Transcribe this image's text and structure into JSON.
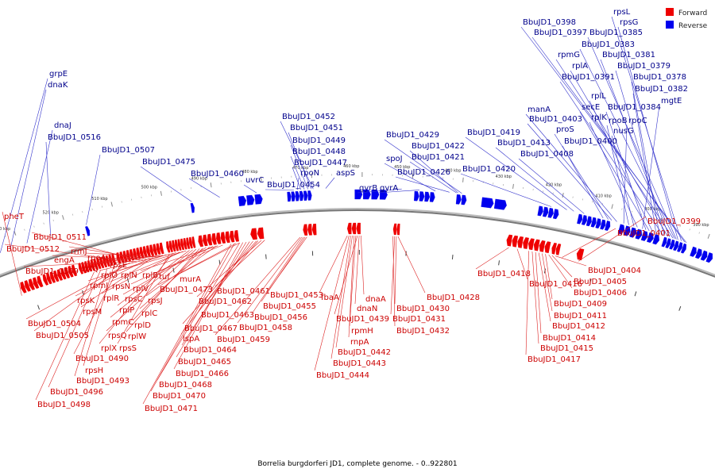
{
  "caption": "Borrelia burgdorferi JD1, complete genome. - 0..922801",
  "legend": [
    {
      "label": "Forward",
      "color": "#ee0000"
    },
    {
      "label": "Reverse",
      "color": "#0000ee"
    }
  ],
  "colors": {
    "forward": "#ee0000",
    "reverse": "#0000ee",
    "forward_label": "#cc0000",
    "reverse_label": "#00008b",
    "backbone": "#777777"
  },
  "ticks": [
    "390 kbp",
    "400 kbp",
    "410 kbp",
    "420 kbp",
    "430 kbp",
    "440 kbp",
    "450 kbp",
    "460 kbp",
    "470 kbp",
    "480 kbp",
    "490 kbp",
    "500 kbp",
    "510 kbp",
    "520 kbp",
    "530 kbp"
  ],
  "reverse_labels": [
    "BbuJD1_0398",
    "BbuJD1_0397",
    "rpsL",
    "rpsG",
    "BbuJD1_0385",
    "BbuJD1_0383",
    "rpmG",
    "BbuJD1_0381",
    "rplA",
    "BbuJD1_0379",
    "BbuJD1_0391",
    "BbuJD1_0378",
    "BbuJD1_0382",
    "rplL",
    "secE",
    "BbuJD1_0384",
    "mgtE",
    "manA",
    "BbuJD1_0403",
    "rplK",
    "nusG",
    "proS",
    "rpoB",
    "rpoC",
    "BbuJD1_0400",
    "BbuJD1_0419",
    "BbuJD1_0413",
    "BbuJD1_0408",
    "BbuJD1_0420",
    "BbuJD1_0429",
    "BbuJD1_0422",
    "BbuJD1_0421",
    "spoJ",
    "BbuJD1_0426",
    "gyrB",
    "gyrA",
    "BbuJD1_0452",
    "BbuJD1_0451",
    "BbuJD1_0449",
    "BbuJD1_0448",
    "BbuJD1_0447",
    "rpoN",
    "BbuJD1_0454",
    "aspS",
    "uvrC",
    "BbuJD1_0460",
    "BbuJD1_0475",
    "BbuJD1_0507",
    "BbuJD1_0516",
    "dnaJ",
    "grpE",
    "dnaK"
  ],
  "forward_labels": [
    "BbuJD1_0399",
    "BbuJD1_0401",
    "BbuJD1_0404",
    "BbuJD1_0405",
    "BbuJD1_0406",
    "BbuJD1_0409",
    "BbuJD1_0411",
    "BbuJD1_0412",
    "BbuJD1_0414",
    "BbuJD1_0415",
    "BbuJD1_0417",
    "BbuJD1_0418",
    "BbuJD1_0416",
    "BbuJD1_0428",
    "BbuJD1_0430",
    "BbuJD1_0431",
    "BbuJD1_0432",
    "dnaA",
    "dnaN",
    "BbuJD1_0439",
    "rpmH",
    "rnpA",
    "BbuJD1_0442",
    "BbuJD1_0443",
    "BbuJD1_0444",
    "fbaA",
    "BbuJD1_0453",
    "BbuJD1_0455",
    "BbuJD1_0456",
    "BbuJD1_0458",
    "BbuJD1_0459",
    "BbuJD1_0461",
    "BbuJD1_0462",
    "BbuJD1_0463",
    "murA",
    "BbuJD1_0473",
    "BbuJD1_0467",
    "lspA",
    "BbuJD1_0464",
    "BbuJD1_0465",
    "BbuJD1_0466",
    "BbuJD1_0468",
    "BbuJD1_0470",
    "BbuJD1_0471",
    "tuf",
    "rplB",
    "rpsJ",
    "rplV",
    "rplC",
    "rpsC",
    "rplD",
    "rplW",
    "rpsQ",
    "rpmC",
    "rplP",
    "rplN",
    "rpsN",
    "rplR",
    "rplO",
    "rplX",
    "rpsS",
    "rpmJ",
    "rpsE",
    "rplQ",
    "rpoA",
    "rpsM",
    "rpsK",
    "rrmJ",
    "engA",
    "BbuJD1_0511",
    "BbuJD1_0512",
    "BbuJD1_0509",
    "BbuJD1_0504",
    "BbuJD1_0505",
    "BbuJD1_0490",
    "rpsH",
    "BbuJD1_0493",
    "BbuJD1_0496",
    "BbuJD1_0498",
    "pheT"
  ]
}
